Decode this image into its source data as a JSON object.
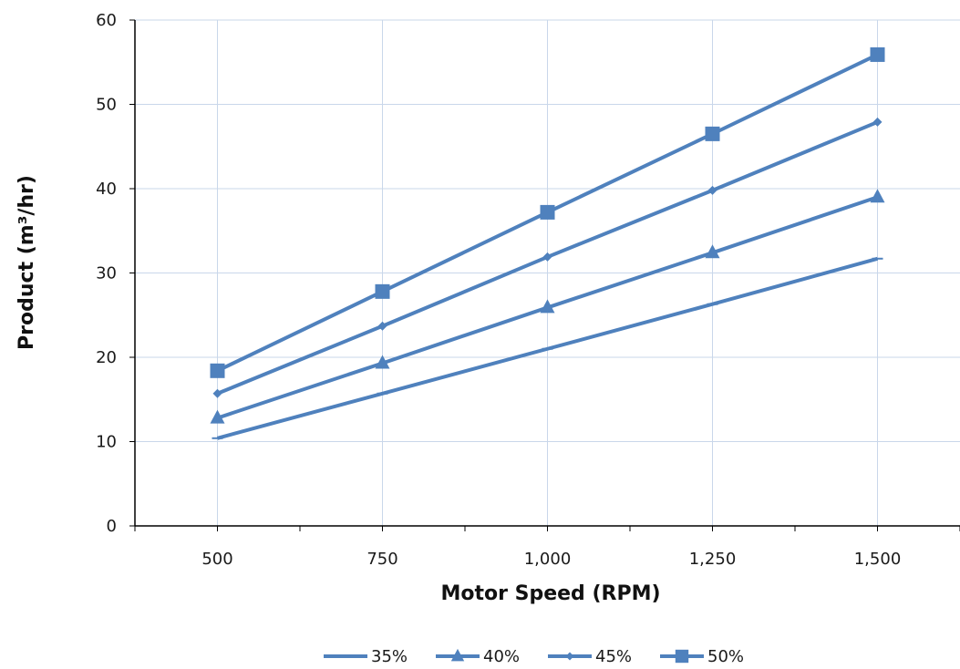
{
  "colors": {
    "series": "#4f81bd",
    "grid": "#c9d7ea",
    "axis": "#000000"
  },
  "chart_data": {
    "type": "line",
    "title": "",
    "xlabel": "Motor Speed (RPM)",
    "ylabel": "Product (m³/hr)",
    "x": [
      500,
      750,
      1000,
      1250,
      1500
    ],
    "x_tick_labels": [
      "500",
      "750",
      "1,000",
      "1,250",
      "1,500"
    ],
    "xlim": [
      375,
      1625
    ],
    "ylim": [
      0,
      60
    ],
    "y_ticks": [
      0,
      10,
      20,
      30,
      40,
      50,
      60
    ],
    "grid": "on (vertical at data x, horizontal at y ticks)",
    "legend_position": "bottom",
    "series": [
      {
        "name": "35%",
        "marker": "dash",
        "values": [
          10.4,
          15.7,
          21.0,
          26.3,
          31.7
        ]
      },
      {
        "name": "40%",
        "marker": "triangle",
        "values": [
          12.8,
          19.3,
          25.9,
          32.4,
          39.0
        ]
      },
      {
        "name": "45%",
        "marker": "diamond",
        "values": [
          15.7,
          23.7,
          31.9,
          39.8,
          47.9
        ]
      },
      {
        "name": "50%",
        "marker": "square",
        "values": [
          18.4,
          27.8,
          37.2,
          46.5,
          55.9
        ]
      }
    ]
  }
}
